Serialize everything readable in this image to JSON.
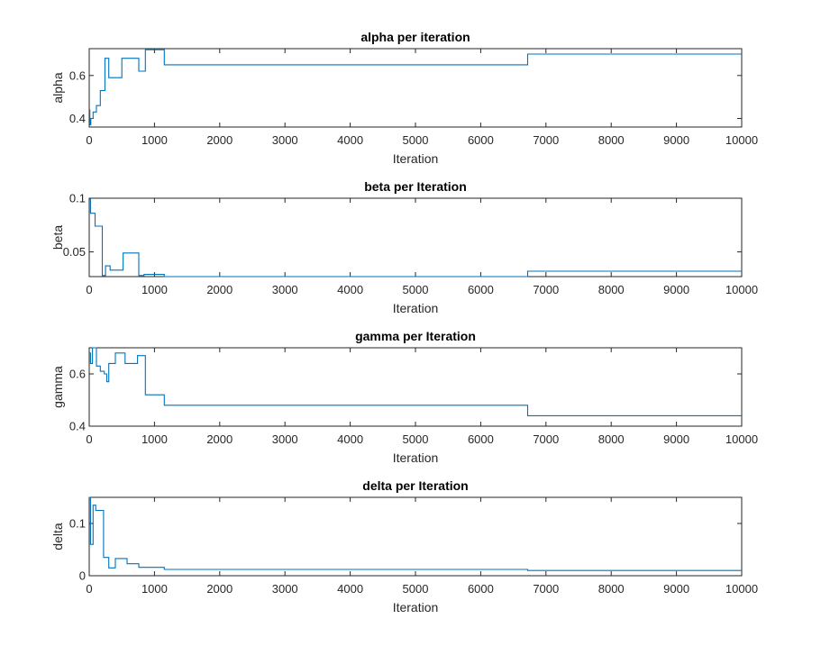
{
  "figure": {
    "xticks": [
      0,
      1000,
      2000,
      3000,
      4000,
      5000,
      6000,
      7000,
      8000,
      9000,
      10000
    ],
    "xlim": [
      0,
      10000
    ],
    "line_color": "#0072BD"
  },
  "chart_data": [
    {
      "type": "line",
      "title": "alpha per iteration",
      "xlabel": "Iteration",
      "ylabel": "alpha",
      "xlim": [
        0,
        10000
      ],
      "ylim": [
        0.36,
        0.725
      ],
      "yticks": [
        0.4,
        0.6
      ],
      "ytick_labels": [
        "0.4",
        "0.6"
      ],
      "step": true,
      "x": [
        0,
        10,
        25,
        60,
        110,
        170,
        240,
        300,
        500,
        760,
        860,
        1150,
        6720,
        10000
      ],
      "y": [
        0.44,
        0.37,
        0.4,
        0.43,
        0.46,
        0.53,
        0.68,
        0.59,
        0.68,
        0.62,
        0.72,
        0.65,
        0.7,
        0.7
      ]
    },
    {
      "type": "line",
      "title": "beta per Iteration",
      "xlabel": "Iteration",
      "ylabel": "beta",
      "xlim": [
        0,
        10000
      ],
      "ylim": [
        0.027,
        0.1
      ],
      "yticks": [
        0.05,
        0.1
      ],
      "ytick_labels": [
        "0.05",
        "0.1"
      ],
      "step": true,
      "x": [
        0,
        20,
        90,
        200,
        250,
        320,
        520,
        760,
        840,
        1150,
        6720,
        10000
      ],
      "y": [
        0.099,
        0.086,
        0.074,
        0.028,
        0.037,
        0.033,
        0.049,
        0.028,
        0.029,
        0.027,
        0.032,
        0.032
      ]
    },
    {
      "type": "line",
      "title": "gamma per Iteration",
      "xlabel": "Iteration",
      "ylabel": "gamma",
      "xlim": [
        0,
        10000
      ],
      "ylim": [
        0.4,
        0.7
      ],
      "yticks": [
        0.4,
        0.6
      ],
      "ytick_labels": [
        "0.4",
        "0.6"
      ],
      "step": true,
      "x": [
        0,
        20,
        50,
        110,
        170,
        230,
        270,
        300,
        400,
        550,
        740,
        860,
        1150,
        6720,
        10000
      ],
      "y": [
        0.68,
        0.64,
        0.7,
        0.63,
        0.61,
        0.6,
        0.57,
        0.64,
        0.68,
        0.64,
        0.67,
        0.52,
        0.48,
        0.44,
        0.44
      ]
    },
    {
      "type": "line",
      "title": "delta per Iteration",
      "xlabel": "Iteration",
      "ylabel": "delta",
      "xlim": [
        0,
        10000
      ],
      "ylim": [
        0,
        0.15
      ],
      "yticks": [
        0,
        0.1
      ],
      "ytick_labels": [
        "0",
        "0.1"
      ],
      "step": true,
      "x": [
        0,
        20,
        60,
        100,
        220,
        300,
        400,
        580,
        760,
        1150,
        6720,
        10000
      ],
      "y": [
        0.15,
        0.06,
        0.135,
        0.125,
        0.035,
        0.015,
        0.033,
        0.023,
        0.016,
        0.012,
        0.01,
        0.01
      ]
    }
  ]
}
